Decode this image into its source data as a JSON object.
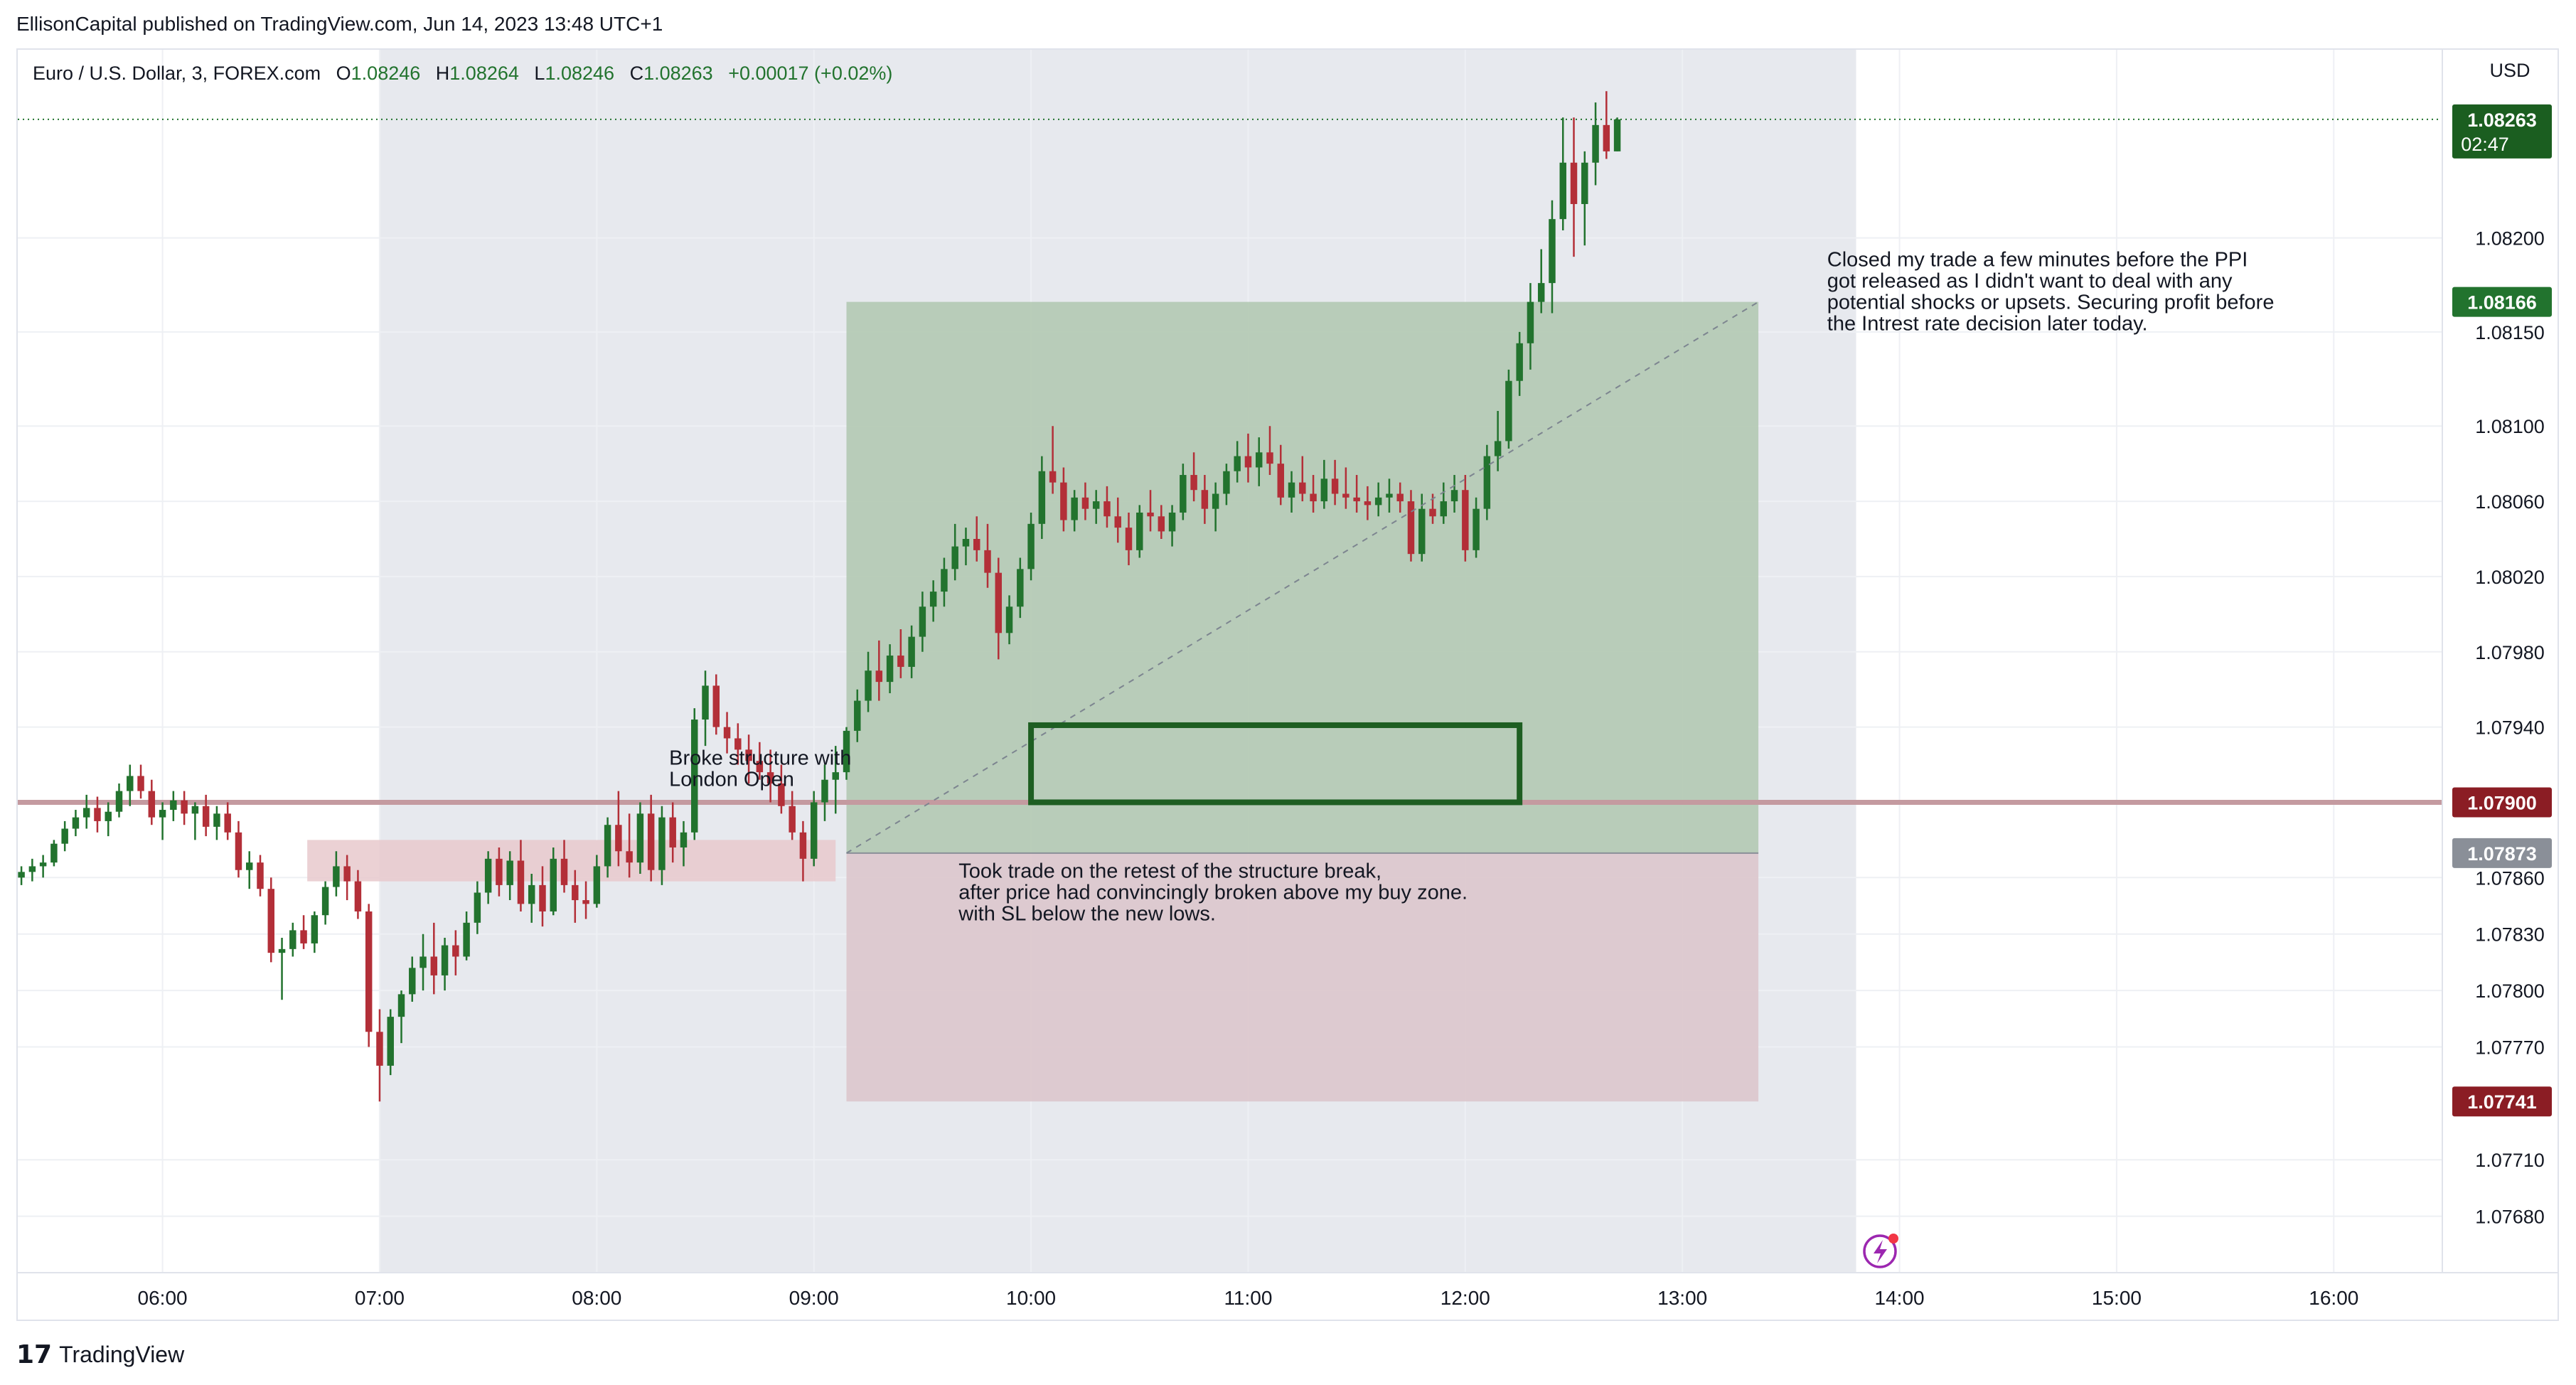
{
  "header": {
    "published": "EllisonCapital published on TradingView.com, Jun 14, 2023 13:48 UTC+1"
  },
  "legend": {
    "symbol": "Euro / U.S. Dollar, 3, FOREX.com",
    "open_label": "O",
    "open": "1.08246",
    "high_label": "H",
    "high": "1.08264",
    "low_label": "L",
    "low": "1.08246",
    "close_label": "C",
    "close": "1.08263",
    "change": "+0.00017 (+0.02%)"
  },
  "footer": {
    "logo_text": "TradingView"
  },
  "colors": {
    "up": "#22732e",
    "down": "#b32f38",
    "grid": "#eef0f4",
    "session_shade": "#e7e9ee",
    "profit_zone": "#b3c9b3",
    "loss_zone": "#dcc7cc",
    "buy_zone": "#e8c9cc",
    "level_line": "#c49aa0",
    "box_border": "#1e5e22"
  },
  "chart_data": {
    "type": "candlestick",
    "symbol": "Euro / U.S. Dollar, 3, FOREX.com",
    "currency": "USD",
    "interval_minutes": 3,
    "ylim": [
      1.0765,
      1.083
    ],
    "xlim": [
      "05:20",
      "16:30"
    ],
    "y_ticks": [
      "1.08200",
      "1.08150",
      "1.08100",
      "1.08060",
      "1.08020",
      "1.07980",
      "1.07940",
      "1.07860",
      "1.07830",
      "1.07800",
      "1.07770",
      "1.07710",
      "1.07680"
    ],
    "x_ticks": [
      "06:00",
      "07:00",
      "08:00",
      "09:00",
      "10:00",
      "11:00",
      "12:00",
      "13:00",
      "14:00",
      "15:00",
      "16:00"
    ],
    "last_price": {
      "value": "1.08263",
      "countdown": "02:47",
      "price": 1.08263
    },
    "price_labels": [
      {
        "label": "1.08166",
        "price": 1.08166,
        "kind": "take-profit"
      },
      {
        "label": "1.07900",
        "price": 1.079,
        "kind": "level"
      },
      {
        "label": "1.07873",
        "price": 1.07873,
        "kind": "entry"
      },
      {
        "label": "1.07741",
        "price": 1.07741,
        "kind": "stop-loss"
      }
    ],
    "horizontal_level": 1.079,
    "session_start": "07:00",
    "session_end": "13:48",
    "buy_zone": {
      "t0": "06:40",
      "t1": "09:06",
      "p_top": 1.0788,
      "p_bottom": 1.07858
    },
    "position": {
      "type": "long",
      "entry": 1.07873,
      "target": 1.08166,
      "stop": 1.07741,
      "t_entry": "09:09",
      "t_exit": "13:21"
    },
    "box": {
      "t0": "10:00",
      "t1": "12:15",
      "p_top": 1.07941,
      "p_bottom": 1.079
    },
    "path_line": [
      [
        "09:09",
        1.07873
      ],
      [
        "13:21",
        1.08166
      ]
    ],
    "annotations": [
      {
        "t": "08:20",
        "p": 1.0792,
        "lines": [
          "Broke structure with",
          "London Open"
        ]
      },
      {
        "t": "09:40",
        "p": 1.0786,
        "lines": [
          "Took trade on the retest of the structure break,",
          "after price had convincingly broken above my buy zone.",
          "with SL below the new lows."
        ]
      },
      {
        "t": "13:40",
        "p": 1.08185,
        "lines": [
          "Closed my trade a few minutes before the PPI",
          "got released as I didn't want to deal with any",
          "potential shocks or upsets. Securing profit before",
          "the Intrest rate decision later today."
        ]
      }
    ],
    "candles_time_start": "05:21",
    "candles": [
      [
        1.0786,
        1.07866,
        1.07856,
        1.07863
      ],
      [
        1.07863,
        1.0787,
        1.07858,
        1.07866
      ],
      [
        1.07866,
        1.07872,
        1.0786,
        1.07868
      ],
      [
        1.07868,
        1.0788,
        1.07866,
        1.07878
      ],
      [
        1.07878,
        1.0789,
        1.07874,
        1.07886
      ],
      [
        1.07886,
        1.07896,
        1.07882,
        1.07892
      ],
      [
        1.07892,
        1.07904,
        1.07886,
        1.07897
      ],
      [
        1.07897,
        1.07903,
        1.07884,
        1.0789
      ],
      [
        1.0789,
        1.079,
        1.07882,
        1.07895
      ],
      [
        1.07895,
        1.0791,
        1.07892,
        1.07906
      ],
      [
        1.07906,
        1.0792,
        1.07898,
        1.07914
      ],
      [
        1.07914,
        1.0792,
        1.07902,
        1.07906
      ],
      [
        1.07906,
        1.07912,
        1.07888,
        1.07892
      ],
      [
        1.07892,
        1.079,
        1.0788,
        1.07896
      ],
      [
        1.07896,
        1.07906,
        1.0789,
        1.07901
      ],
      [
        1.07901,
        1.07906,
        1.07888,
        1.07894
      ],
      [
        1.07894,
        1.079,
        1.0788,
        1.07898
      ],
      [
        1.07898,
        1.07904,
        1.07882,
        1.07887
      ],
      [
        1.07887,
        1.07898,
        1.0788,
        1.07894
      ],
      [
        1.07894,
        1.079,
        1.0788,
        1.07884
      ],
      [
        1.07884,
        1.0789,
        1.0786,
        1.07864
      ],
      [
        1.07864,
        1.07874,
        1.07854,
        1.07868
      ],
      [
        1.07868,
        1.07872,
        1.0785,
        1.07854
      ],
      [
        1.07854,
        1.0786,
        1.07815,
        1.0782
      ],
      [
        1.0782,
        1.07828,
        1.07795,
        1.07822
      ],
      [
        1.07822,
        1.07836,
        1.07818,
        1.07832
      ],
      [
        1.07832,
        1.0784,
        1.07822,
        1.07825
      ],
      [
        1.07825,
        1.07842,
        1.0782,
        1.0784
      ],
      [
        1.0784,
        1.07858,
        1.07835,
        1.07855
      ],
      [
        1.07855,
        1.07874,
        1.0785,
        1.07866
      ],
      [
        1.07866,
        1.07872,
        1.07848,
        1.07858
      ],
      [
        1.07858,
        1.07864,
        1.07838,
        1.07842
      ],
      [
        1.07842,
        1.07846,
        1.0777,
        1.07778
      ],
      [
        1.07778,
        1.0779,
        1.07741,
        1.0776
      ],
      [
        1.0776,
        1.0779,
        1.07755,
        1.07786
      ],
      [
        1.07786,
        1.078,
        1.07772,
        1.07798
      ],
      [
        1.07798,
        1.07818,
        1.07794,
        1.07812
      ],
      [
        1.07812,
        1.0783,
        1.078,
        1.07818
      ],
      [
        1.07818,
        1.07836,
        1.07798,
        1.07808
      ],
      [
        1.07808,
        1.07828,
        1.078,
        1.07824
      ],
      [
        1.07824,
        1.07832,
        1.07808,
        1.07818
      ],
      [
        1.07818,
        1.07842,
        1.07816,
        1.07836
      ],
      [
        1.07836,
        1.07858,
        1.0783,
        1.07852
      ],
      [
        1.07852,
        1.07874,
        1.07846,
        1.0787
      ],
      [
        1.0787,
        1.07876,
        1.0785,
        1.07856
      ],
      [
        1.07856,
        1.07874,
        1.07848,
        1.07869
      ],
      [
        1.07869,
        1.0788,
        1.07842,
        1.07846
      ],
      [
        1.07846,
        1.07862,
        1.07836,
        1.07856
      ],
      [
        1.07856,
        1.07866,
        1.07834,
        1.07842
      ],
      [
        1.07842,
        1.07876,
        1.0784,
        1.0787
      ],
      [
        1.0787,
        1.0788,
        1.07852,
        1.07856
      ],
      [
        1.07856,
        1.07864,
        1.07836,
        1.07848
      ],
      [
        1.07848,
        1.07858,
        1.07838,
        1.07846
      ],
      [
        1.07846,
        1.07872,
        1.07844,
        1.07866
      ],
      [
        1.07866,
        1.07892,
        1.0786,
        1.07888
      ],
      [
        1.07888,
        1.07906,
        1.07866,
        1.07874
      ],
      [
        1.07874,
        1.07894,
        1.0786,
        1.07868
      ],
      [
        1.07868,
        1.079,
        1.07862,
        1.07894
      ],
      [
        1.07894,
        1.07904,
        1.07858,
        1.07864
      ],
      [
        1.07864,
        1.07898,
        1.07856,
        1.07892
      ],
      [
        1.07892,
        1.079,
        1.07868,
        1.07876
      ],
      [
        1.07876,
        1.0789,
        1.07866,
        1.07884
      ],
      [
        1.07884,
        1.0795,
        1.0788,
        1.07944
      ],
      [
        1.07944,
        1.0797,
        1.0793,
        1.07962
      ],
      [
        1.07962,
        1.07968,
        1.07936,
        1.0794
      ],
      [
        1.0794,
        1.07948,
        1.07926,
        1.07934
      ],
      [
        1.07934,
        1.07942,
        1.0792,
        1.07928
      ],
      [
        1.07928,
        1.07936,
        1.0791,
        1.07922
      ],
      [
        1.07922,
        1.07932,
        1.07912,
        1.07916
      ],
      [
        1.07916,
        1.07928,
        1.079,
        1.0791
      ],
      [
        1.0791,
        1.0792,
        1.07894,
        1.07898
      ],
      [
        1.07898,
        1.07906,
        1.0788,
        1.07884
      ],
      [
        1.07884,
        1.0789,
        1.07858,
        1.0787
      ],
      [
        1.0787,
        1.07906,
        1.07866,
        1.079
      ],
      [
        1.079,
        1.0792,
        1.0789,
        1.07912
      ],
      [
        1.07912,
        1.0793,
        1.07894,
        1.07916
      ],
      [
        1.07916,
        1.0794,
        1.07912,
        1.07938
      ],
      [
        1.07938,
        1.0796,
        1.07932,
        1.07954
      ],
      [
        1.07954,
        1.0798,
        1.07948,
        1.0797
      ],
      [
        1.0797,
        1.07986,
        1.07954,
        1.07964
      ],
      [
        1.07964,
        1.07984,
        1.07958,
        1.07978
      ],
      [
        1.07978,
        1.07992,
        1.07966,
        1.07972
      ],
      [
        1.07972,
        1.07994,
        1.07966,
        1.07988
      ],
      [
        1.07988,
        1.08012,
        1.0798,
        1.08004
      ],
      [
        1.08004,
        1.08018,
        1.07996,
        1.08012
      ],
      [
        1.08012,
        1.0803,
        1.08004,
        1.08024
      ],
      [
        1.08024,
        1.08048,
        1.08018,
        1.08036
      ],
      [
        1.08036,
        1.08046,
        1.08026,
        1.0804
      ],
      [
        1.0804,
        1.08052,
        1.08028,
        1.08034
      ],
      [
        1.08034,
        1.08048,
        1.08014,
        1.08022
      ],
      [
        1.08022,
        1.0803,
        1.07976,
        1.0799
      ],
      [
        1.0799,
        1.0801,
        1.07984,
        1.08004
      ],
      [
        1.08004,
        1.0803,
        1.07998,
        1.08024
      ],
      [
        1.08024,
        1.08054,
        1.08018,
        1.08048
      ],
      [
        1.08048,
        1.08084,
        1.0804,
        1.08076
      ],
      [
        1.08076,
        1.081,
        1.08064,
        1.0807
      ],
      [
        1.0807,
        1.08078,
        1.08044,
        1.0805
      ],
      [
        1.0805,
        1.08066,
        1.08044,
        1.08062
      ],
      [
        1.08062,
        1.0807,
        1.0805,
        1.08056
      ],
      [
        1.08056,
        1.08066,
        1.08048,
        1.0806
      ],
      [
        1.0806,
        1.08068,
        1.08046,
        1.08052
      ],
      [
        1.08052,
        1.08062,
        1.08038,
        1.08046
      ],
      [
        1.08046,
        1.08054,
        1.08026,
        1.08034
      ],
      [
        1.08034,
        1.08058,
        1.0803,
        1.08054
      ],
      [
        1.08054,
        1.08066,
        1.08044,
        1.08052
      ],
      [
        1.08052,
        1.08058,
        1.0804,
        1.08044
      ],
      [
        1.08044,
        1.08058,
        1.08036,
        1.08054
      ],
      [
        1.08054,
        1.0808,
        1.0805,
        1.08074
      ],
      [
        1.08074,
        1.08086,
        1.0806,
        1.08066
      ],
      [
        1.08066,
        1.08074,
        1.08048,
        1.08056
      ],
      [
        1.08056,
        1.0807,
        1.08044,
        1.08064
      ],
      [
        1.08064,
        1.0808,
        1.08058,
        1.08076
      ],
      [
        1.08076,
        1.08092,
        1.0807,
        1.08084
      ],
      [
        1.08084,
        1.08096,
        1.0807,
        1.08078
      ],
      [
        1.08078,
        1.08094,
        1.08068,
        1.08086
      ],
      [
        1.08086,
        1.081,
        1.08074,
        1.0808
      ],
      [
        1.0808,
        1.0809,
        1.08058,
        1.08062
      ],
      [
        1.08062,
        1.08076,
        1.08054,
        1.0807
      ],
      [
        1.0807,
        1.08084,
        1.0806,
        1.08064
      ],
      [
        1.08064,
        1.08074,
        1.08054,
        1.0806
      ],
      [
        1.0806,
        1.08082,
        1.08056,
        1.08072
      ],
      [
        1.08072,
        1.08082,
        1.08058,
        1.08064
      ],
      [
        1.08064,
        1.08078,
        1.08056,
        1.08062
      ],
      [
        1.08062,
        1.08074,
        1.08054,
        1.0806
      ],
      [
        1.0806,
        1.08068,
        1.0805,
        1.08058
      ],
      [
        1.08058,
        1.0807,
        1.08052,
        1.08062
      ],
      [
        1.08062,
        1.08072,
        1.08054,
        1.08064
      ],
      [
        1.08064,
        1.0807,
        1.08054,
        1.0806
      ],
      [
        1.0806,
        1.08066,
        1.08028,
        1.08032
      ],
      [
        1.08032,
        1.08064,
        1.08028,
        1.08056
      ],
      [
        1.08056,
        1.08064,
        1.08048,
        1.08052
      ],
      [
        1.08052,
        1.0807,
        1.08048,
        1.0806
      ],
      [
        1.0806,
        1.08074,
        1.08054,
        1.08066
      ],
      [
        1.08066,
        1.08074,
        1.08028,
        1.08034
      ],
      [
        1.08034,
        1.08062,
        1.0803,
        1.08056
      ],
      [
        1.08056,
        1.0809,
        1.0805,
        1.08084
      ],
      [
        1.08084,
        1.08108,
        1.08076,
        1.08092
      ],
      [
        1.08092,
        1.0813,
        1.08088,
        1.08124
      ],
      [
        1.08124,
        1.0815,
        1.08116,
        1.08144
      ],
      [
        1.08144,
        1.08176,
        1.0813,
        1.08166
      ],
      [
        1.08166,
        1.08194,
        1.0816,
        1.08176
      ],
      [
        1.08176,
        1.0822,
        1.0816,
        1.0821
      ],
      [
        1.0821,
        1.08264,
        1.08204,
        1.0824
      ],
      [
        1.0824,
        1.08264,
        1.0819,
        1.08218
      ],
      [
        1.08218,
        1.08246,
        1.08196,
        1.0824
      ],
      [
        1.0824,
        1.08272,
        1.08228,
        1.0826
      ],
      [
        1.0826,
        1.08278,
        1.08242,
        1.08246
      ],
      [
        1.08246,
        1.08264,
        1.08246,
        1.08263
      ]
    ]
  }
}
